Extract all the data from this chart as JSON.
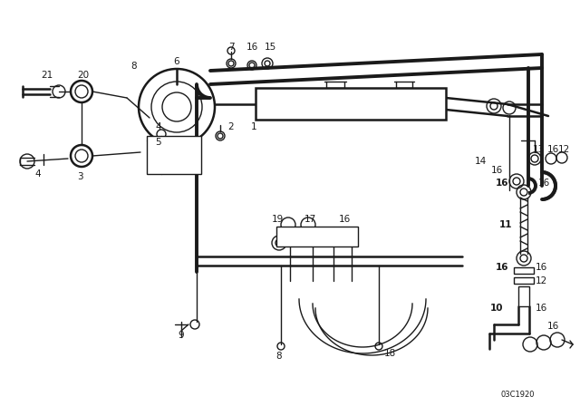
{
  "bg_color": "#ffffff",
  "line_color": "#1a1a1a",
  "diagram_id": "03C1920",
  "figsize": [
    6.4,
    4.48
  ],
  "dpi": 100
}
